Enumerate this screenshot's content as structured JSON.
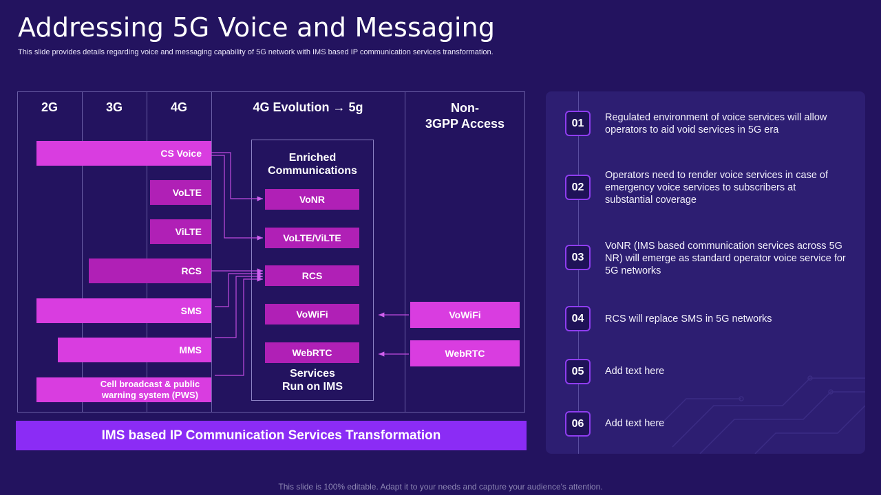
{
  "title": "Addressing 5G Voice and Messaging",
  "subtitle": "This slide provides details regarding voice and messaging capability of 5G network with IMS based IP communication services transformation.",
  "columns": {
    "c2g": "2G",
    "c3g": "3G",
    "c4g": "4G",
    "evolution_left": "4G Evolution",
    "evolution_arrow": "→",
    "evolution_right": "5g",
    "nongpp_line1": "Non-",
    "nongpp_line2": "3GPP Access"
  },
  "legacy_services": {
    "cs_voice": "CS Voice",
    "volte": "VoLTE",
    "vilte": "ViLTE",
    "rcs": "RCS",
    "sms": "SMS",
    "mms": "MMS",
    "pws_line1": "Cell broadcast & public",
    "pws_line2": "warning system (PWS)"
  },
  "ims": {
    "head_line1": "Enriched",
    "head_line2": "Communications",
    "vonr": "VoNR",
    "volte_vilte": "VoLTE/ViLTE",
    "rcs": "RCS",
    "vowifi": "VoWiFi",
    "webrtc": "WebRTC",
    "foot_line1": "Services",
    "foot_line2": "Run on IMS"
  },
  "non_3gpp": {
    "vowifi": "VoWiFi",
    "webrtc": "WebRTC"
  },
  "banner": "IMS based IP Communication Services Transformation",
  "points": [
    {
      "num": "01",
      "text": "Regulated environment of voice services will allow operators to aid void services in 5G era"
    },
    {
      "num": "02",
      "text": "Operators need to render voice services in case of emergency voice services to subscribers at substantial coverage"
    },
    {
      "num": "03",
      "text": "VoNR (IMS based communication services across 5G NR) will emerge as standard operator voice service for 5G networks"
    },
    {
      "num": "04",
      "text": "RCS will replace SMS in 5G networks"
    },
    {
      "num": "05",
      "text": "Add text here"
    },
    {
      "num": "06",
      "text": "Add text here"
    }
  ],
  "footer": "This slide is 100% editable. Adapt it to your needs and capture your audience's attention.",
  "colors": {
    "background": "#23135f",
    "pink": "#d93de0",
    "magenta": "#b020b6",
    "banner": "#8b2cf5",
    "panel": "#2d1e72"
  }
}
